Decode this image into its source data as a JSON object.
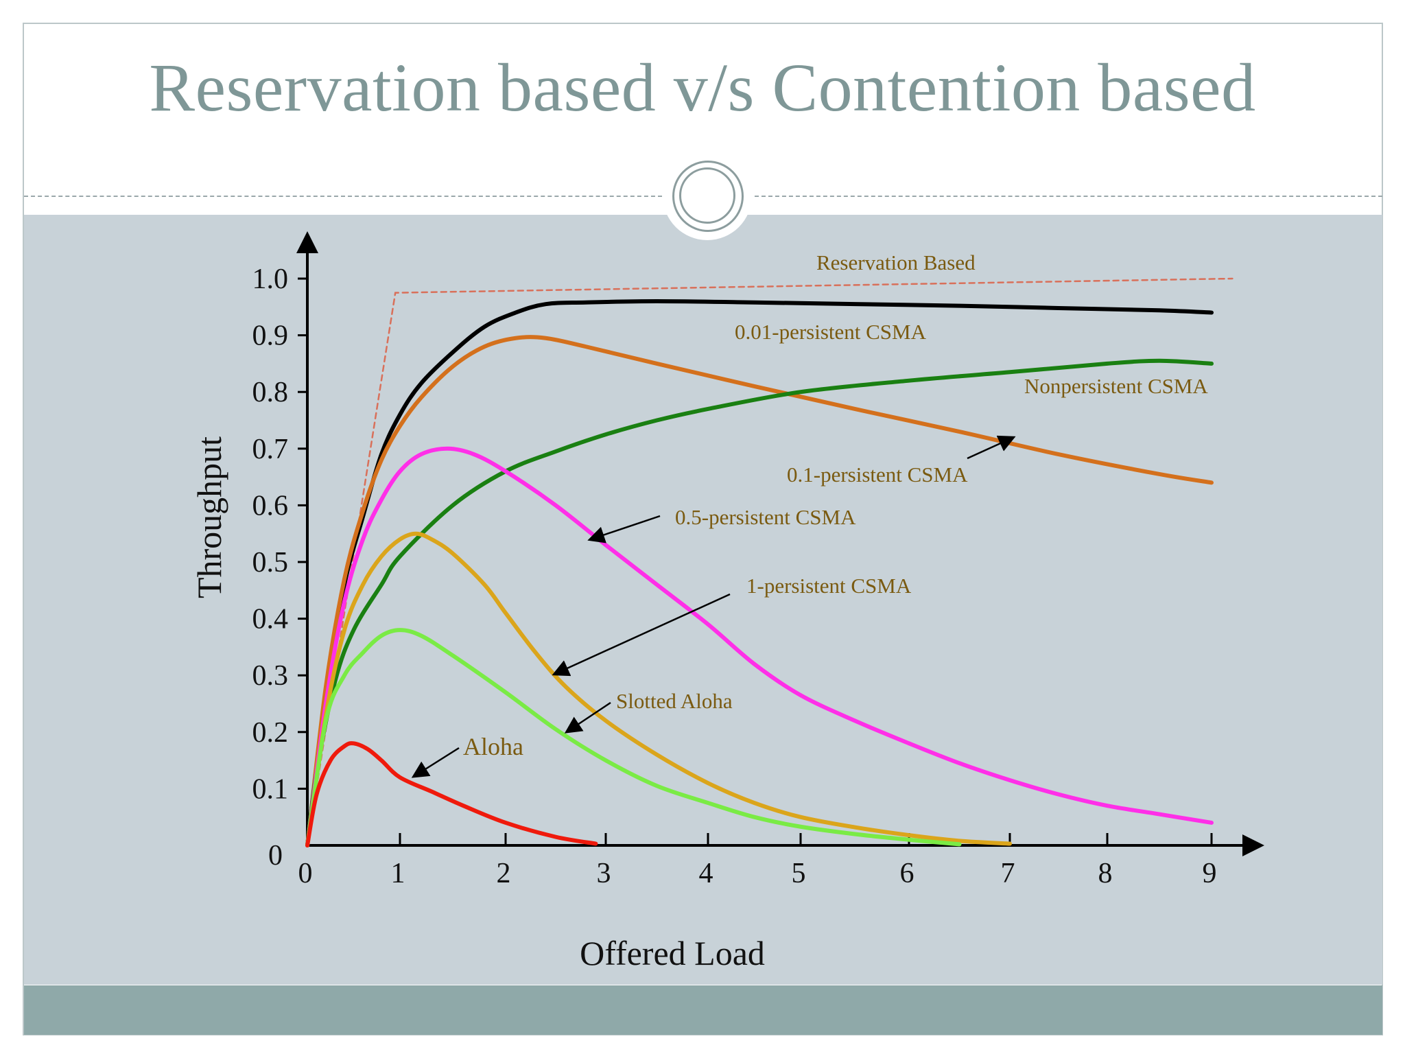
{
  "slide": {
    "title": "Reservation based v/s Contention based",
    "colors": {
      "title": "#7f9797",
      "panel": "#c8d2d8",
      "footer": "#8fa9a9"
    }
  },
  "chart_data": {
    "type": "line",
    "xlabel": "Offered Load",
    "ylabel": "Throughput",
    "xlim": [
      0,
      9
    ],
    "ylim": [
      0,
      1.0
    ],
    "x_ticks": [
      "0",
      "1",
      "2",
      "3",
      "4",
      "5",
      "6",
      "7",
      "8",
      "9"
    ],
    "y_ticks": [
      "0",
      "0.1",
      "0.2",
      "0.3",
      "0.4",
      "0.5",
      "0.6",
      "0.7",
      "0.8",
      "0.9",
      "1.0"
    ],
    "grid": false,
    "series": [
      {
        "name": "Reservation Based",
        "color": "#d9705a",
        "dashed": true,
        "points": [
          [
            0,
            0
          ],
          [
            0.95,
            0.975
          ],
          [
            9.2,
            1.0
          ]
        ]
      },
      {
        "name": "0.01-persistent CSMA",
        "color": "#000000",
        "points": [
          [
            0,
            0
          ],
          [
            0.2,
            0.27
          ],
          [
            0.4,
            0.46
          ],
          [
            0.6,
            0.58
          ],
          [
            0.8,
            0.69
          ],
          [
            1.0,
            0.76
          ],
          [
            1.2,
            0.815
          ],
          [
            1.5,
            0.87
          ],
          [
            1.8,
            0.915
          ],
          [
            2.1,
            0.94
          ],
          [
            2.4,
            0.955
          ],
          [
            2.8,
            0.958
          ],
          [
            3.5,
            0.96
          ],
          [
            4.5,
            0.958
          ],
          [
            5.5,
            0.955
          ],
          [
            6.5,
            0.952
          ],
          [
            7.5,
            0.948
          ],
          [
            8.5,
            0.944
          ],
          [
            9.0,
            0.94
          ]
        ]
      },
      {
        "name": "0.1-persistent CSMA",
        "color": "#d4701c",
        "points": [
          [
            0,
            0
          ],
          [
            0.2,
            0.28
          ],
          [
            0.4,
            0.47
          ],
          [
            0.6,
            0.59
          ],
          [
            0.8,
            0.68
          ],
          [
            1.0,
            0.74
          ],
          [
            1.2,
            0.79
          ],
          [
            1.5,
            0.845
          ],
          [
            1.8,
            0.88
          ],
          [
            2.1,
            0.895
          ],
          [
            2.4,
            0.895
          ],
          [
            2.8,
            0.88
          ],
          [
            3.5,
            0.85
          ],
          [
            4.5,
            0.81
          ],
          [
            5.5,
            0.77
          ],
          [
            6.5,
            0.73
          ],
          [
            7.5,
            0.69
          ],
          [
            8.5,
            0.655
          ],
          [
            9.0,
            0.64
          ]
        ]
      },
      {
        "name": "Nonpersistent CSMA",
        "color": "#1a8012",
        "points": [
          [
            0,
            0
          ],
          [
            0.1,
            0.13
          ],
          [
            0.3,
            0.29
          ],
          [
            0.5,
            0.38
          ],
          [
            0.8,
            0.46
          ],
          [
            1.0,
            0.51
          ],
          [
            1.5,
            0.6
          ],
          [
            2.0,
            0.66
          ],
          [
            2.5,
            0.695
          ],
          [
            3.0,
            0.725
          ],
          [
            3.5,
            0.75
          ],
          [
            4.0,
            0.77
          ],
          [
            5.0,
            0.8
          ],
          [
            6.0,
            0.82
          ],
          [
            7.0,
            0.835
          ],
          [
            8.0,
            0.85
          ],
          [
            8.5,
            0.855
          ],
          [
            9.0,
            0.85
          ]
        ]
      },
      {
        "name": "0.5-persistent CSMA",
        "color": "#ff2fe8",
        "points": [
          [
            0,
            0
          ],
          [
            0.2,
            0.25
          ],
          [
            0.4,
            0.43
          ],
          [
            0.6,
            0.54
          ],
          [
            0.8,
            0.61
          ],
          [
            1.0,
            0.66
          ],
          [
            1.2,
            0.69
          ],
          [
            1.45,
            0.7
          ],
          [
            1.7,
            0.69
          ],
          [
            2.0,
            0.66
          ],
          [
            2.5,
            0.6
          ],
          [
            3.0,
            0.53
          ],
          [
            3.5,
            0.46
          ],
          [
            4.0,
            0.39
          ],
          [
            4.5,
            0.32
          ],
          [
            5.0,
            0.265
          ],
          [
            5.5,
            0.22
          ],
          [
            6.0,
            0.18
          ],
          [
            6.5,
            0.145
          ],
          [
            7.0,
            0.115
          ],
          [
            7.5,
            0.09
          ],
          [
            8.0,
            0.07
          ],
          [
            8.5,
            0.055
          ],
          [
            9.0,
            0.04
          ]
        ]
      },
      {
        "name": "1-persistent CSMA",
        "color": "#dba51b",
        "points": [
          [
            0,
            0
          ],
          [
            0.2,
            0.23
          ],
          [
            0.4,
            0.38
          ],
          [
            0.6,
            0.46
          ],
          [
            0.8,
            0.51
          ],
          [
            1.0,
            0.54
          ],
          [
            1.15,
            0.55
          ],
          [
            1.3,
            0.54
          ],
          [
            1.5,
            0.515
          ],
          [
            1.8,
            0.46
          ],
          [
            2.0,
            0.41
          ],
          [
            2.3,
            0.34
          ],
          [
            2.6,
            0.28
          ],
          [
            3.0,
            0.22
          ],
          [
            3.5,
            0.16
          ],
          [
            4.0,
            0.11
          ],
          [
            4.5,
            0.075
          ],
          [
            5.0,
            0.05
          ],
          [
            5.5,
            0.032
          ],
          [
            6.0,
            0.018
          ],
          [
            6.5,
            0.008
          ],
          [
            7.0,
            0.003
          ]
        ]
      },
      {
        "name": "Slotted Aloha",
        "color": "#7aeb45",
        "points": [
          [
            0,
            0
          ],
          [
            0.2,
            0.22
          ],
          [
            0.4,
            0.3
          ],
          [
            0.6,
            0.34
          ],
          [
            0.8,
            0.37
          ],
          [
            1.0,
            0.38
          ],
          [
            1.2,
            0.37
          ],
          [
            1.5,
            0.335
          ],
          [
            2.0,
            0.27
          ],
          [
            2.5,
            0.205
          ],
          [
            3.0,
            0.15
          ],
          [
            3.5,
            0.105
          ],
          [
            4.0,
            0.075
          ],
          [
            4.5,
            0.05
          ],
          [
            5.0,
            0.033
          ],
          [
            5.5,
            0.02
          ],
          [
            6.0,
            0.01
          ],
          [
            6.5,
            0.002
          ]
        ]
      },
      {
        "name": "Aloha",
        "color": "#ef1a0c",
        "points": [
          [
            0,
            0
          ],
          [
            0.1,
            0.09
          ],
          [
            0.25,
            0.15
          ],
          [
            0.4,
            0.175
          ],
          [
            0.5,
            0.18
          ],
          [
            0.65,
            0.17
          ],
          [
            0.8,
            0.15
          ],
          [
            1.0,
            0.12
          ],
          [
            1.3,
            0.095
          ],
          [
            1.6,
            0.07
          ],
          [
            2.0,
            0.04
          ],
          [
            2.5,
            0.015
          ],
          [
            2.9,
            0.003
          ]
        ]
      }
    ],
    "annotations": [
      {
        "text": "Reservation Based",
        "series": "Reservation Based"
      },
      {
        "text": "0.01-persistent CSMA",
        "series": "0.01-persistent CSMA"
      },
      {
        "text": "Nonpersistent CSMA",
        "series": "Nonpersistent CSMA"
      },
      {
        "text": "0.1-persistent CSMA",
        "series": "0.1-persistent CSMA",
        "arrow": true
      },
      {
        "text": "0.5-persistent CSMA",
        "series": "0.5-persistent CSMA",
        "arrow": true
      },
      {
        "text": "1-persistent CSMA",
        "series": "1-persistent CSMA",
        "arrow": true
      },
      {
        "text": "Slotted Aloha",
        "series": "Slotted Aloha",
        "arrow": true
      },
      {
        "text": "Aloha",
        "series": "Aloha",
        "arrow": true
      }
    ]
  }
}
